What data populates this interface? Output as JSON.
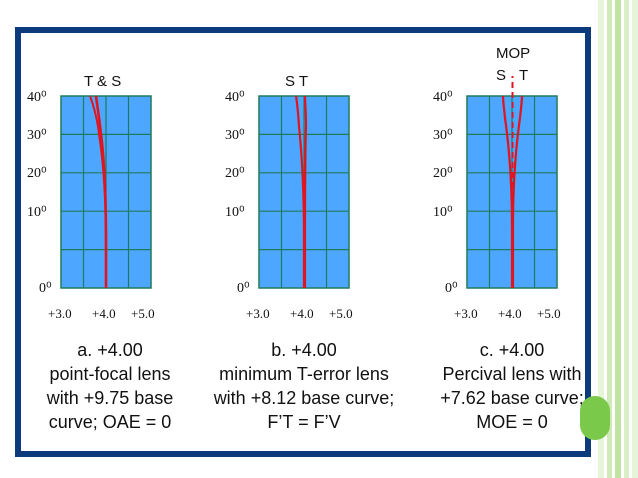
{
  "colors": {
    "frame": "#0b3b7a",
    "grid_fill": "#4da6ff",
    "grid_line": "#1f7a5a",
    "curve": "#e0151f",
    "stripe_light": "#d9efc7",
    "stripe_mid": "#bfe3a0",
    "accent_green": "#7bc94a"
  },
  "y_ticks": [
    "40⁰",
    "30⁰",
    "20⁰",
    "10⁰",
    "0⁰"
  ],
  "x_ticks": [
    "+3.0",
    "+4.0",
    "+5.0"
  ],
  "panels": [
    {
      "top_label": "T & S",
      "caption": [
        "a. +4.00",
        "point-focal lens",
        "with +9.75 base",
        "curve; OAE = 0"
      ]
    },
    {
      "top_label": "S T",
      "caption": [
        "b. +4.00",
        "minimum T-error lens",
        "with +8.12 base curve;",
        "F’T = F’V"
      ]
    },
    {
      "top_label_top": "MOP",
      "top_label_s": "S",
      "top_label_t": "T",
      "caption": [
        "c. +4.00",
        "Percival lens with",
        "+7.62 base curve;",
        "MOE = 0"
      ]
    }
  ]
}
